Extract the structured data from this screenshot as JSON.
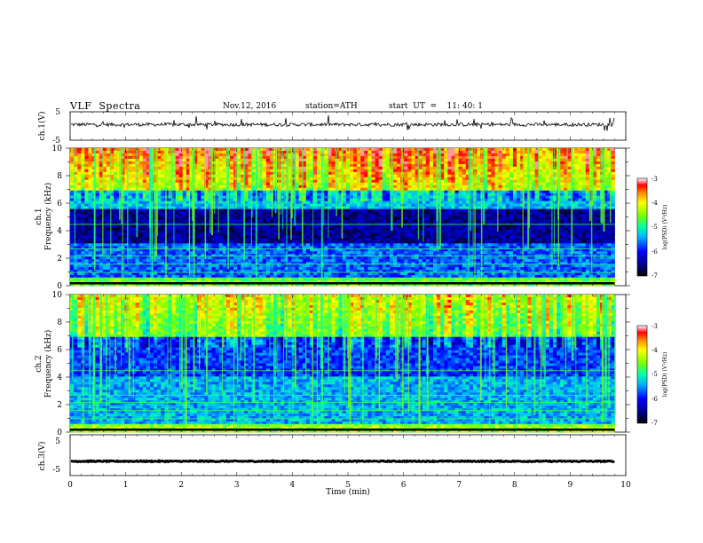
{
  "header": {
    "title": "VLF  Spectra",
    "date": "Nov.12, 2016",
    "station": "station=ATH",
    "start": "start  UT  =    11: 40: 1"
  },
  "chart_data": [
    {
      "type": "line",
      "name": "ch1-waveform",
      "ylabel": "ch.1(V)",
      "ylim": [
        -5,
        5
      ],
      "yticks": [
        "5",
        "-5"
      ],
      "xlim": [
        0,
        10
      ],
      "baseline": 0.5,
      "data_end_min": 9.8
    },
    {
      "type": "heatmap",
      "name": "ch1-spectrogram",
      "ylabel": "Frequency  (kHz)",
      "channel_label": "ch.1",
      "ylim": [
        0,
        10
      ],
      "yticks": [
        "0",
        "2",
        "4",
        "6",
        "8",
        "10"
      ],
      "xlim": [
        0,
        10
      ],
      "data_end_min": 9.8,
      "colorbar": {
        "label": "log(PSD) (V²/Hz)",
        "range": [
          -7,
          -3
        ],
        "ticks": [
          "-3",
          "-4",
          "-5",
          "-6",
          "-7"
        ]
      }
    },
    {
      "type": "heatmap",
      "name": "ch2-spectrogram",
      "ylabel": "Frequency  (kHz)",
      "channel_label": "ch.2",
      "ylim": [
        0,
        10
      ],
      "yticks": [
        "0",
        "2",
        "4",
        "6",
        "8",
        "10"
      ],
      "xlim": [
        0,
        10
      ],
      "data_end_min": 9.8,
      "colorbar": {
        "label": "log(PSD) (V²/Hz)",
        "range": [
          -7,
          -3
        ],
        "ticks": [
          "-3",
          "-4",
          "-5",
          "-6",
          "-7"
        ]
      }
    },
    {
      "type": "line",
      "name": "ch3-waveform",
      "ylabel": "ch.3(V)",
      "ylim": [
        -5,
        5
      ],
      "yticks": [
        "5",
        "-5"
      ],
      "xlim": [
        0,
        10
      ],
      "xticks": [
        "0",
        "1",
        "2",
        "3",
        "4",
        "5",
        "6",
        "7",
        "8",
        "9",
        "10"
      ],
      "xlabel": "Time  (min)",
      "baseline": -1.5,
      "data_end_min": 9.8
    }
  ]
}
